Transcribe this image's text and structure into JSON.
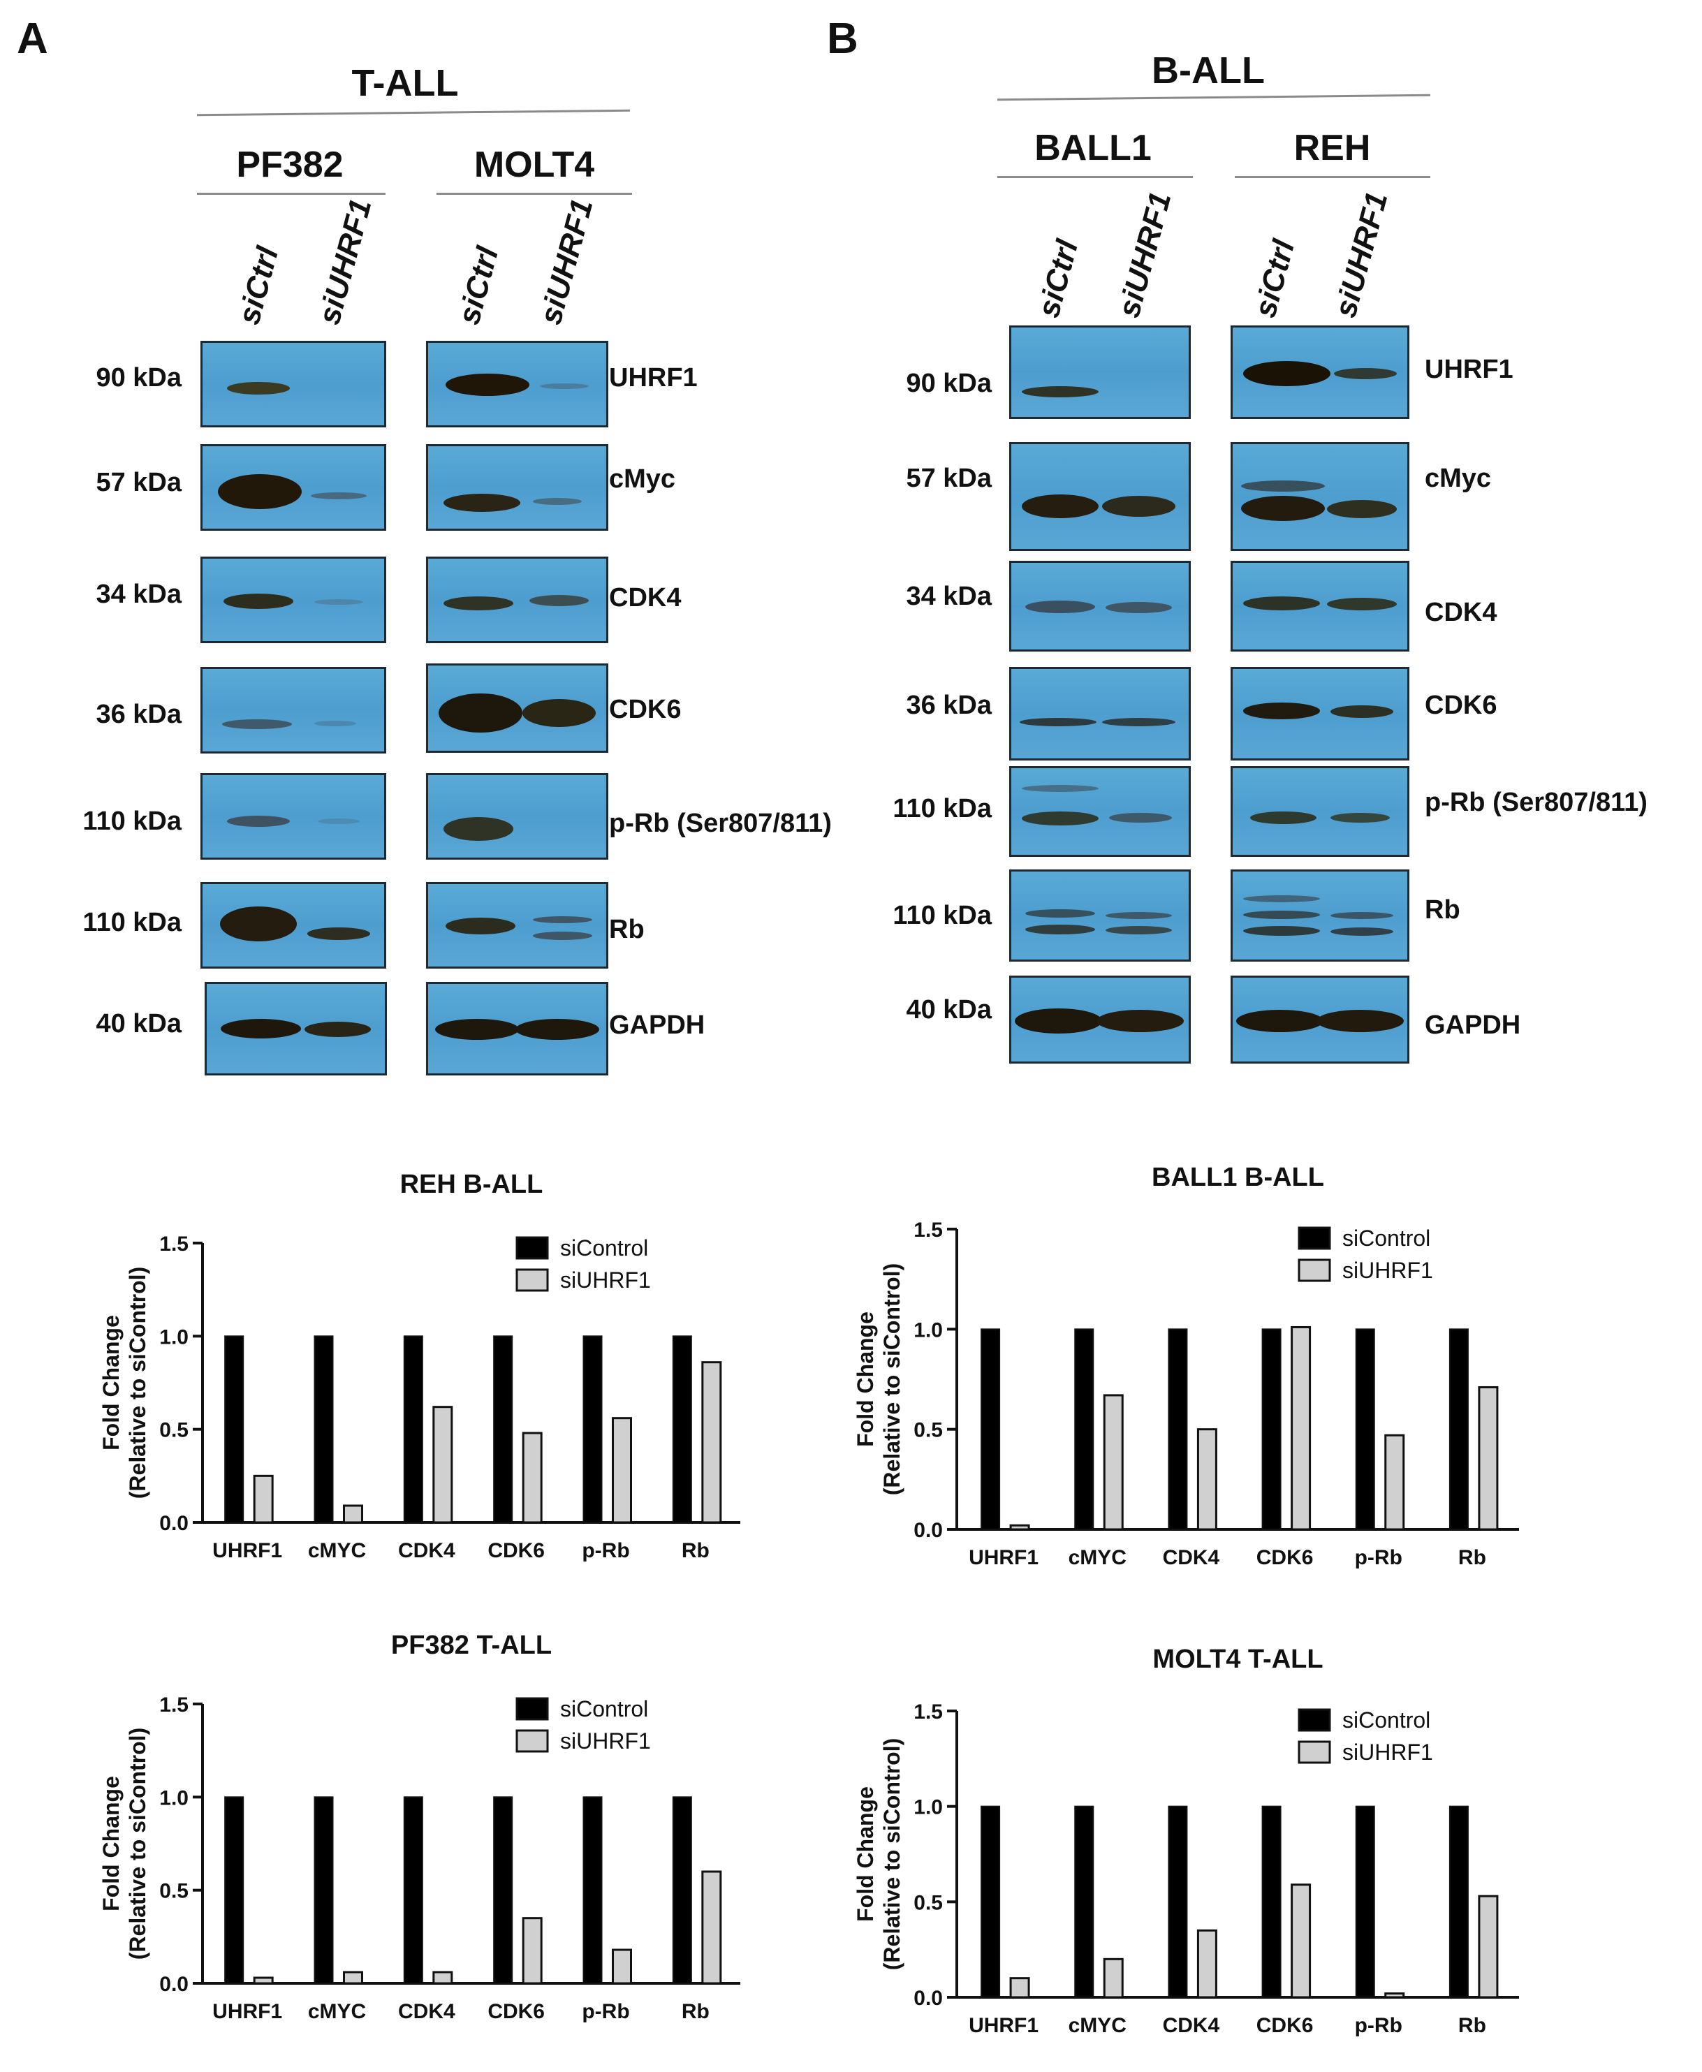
{
  "panelA": {
    "letter": "A",
    "group": "T-ALL",
    "cell_lines": [
      "PF382",
      "MOLT4"
    ],
    "lanes": [
      "siCtrl",
      "siUHRF1"
    ],
    "rows": [
      {
        "mw": "90 kDa",
        "protein": "UHRF1"
      },
      {
        "mw": "57 kDa",
        "protein": "cMyc"
      },
      {
        "mw": "34 kDa",
        "protein": "CDK4"
      },
      {
        "mw": "36 kDa",
        "protein": "CDK6"
      },
      {
        "mw": "110 kDa",
        "protein": "p-Rb (Ser807/811)"
      },
      {
        "mw": "110 kDa",
        "protein": "Rb"
      },
      {
        "mw": "40 kDa",
        "protein": "GAPDH"
      }
    ]
  },
  "panelB": {
    "letter": "B",
    "group": "B-ALL",
    "cell_lines": [
      "BALL1",
      "REH"
    ],
    "lanes": [
      "siCtrl",
      "siUHRF1"
    ],
    "rows": [
      {
        "mw": "90 kDa",
        "protein": "UHRF1"
      },
      {
        "mw": "57 kDa",
        "protein": "cMyc"
      },
      {
        "mw": "34 kDa",
        "protein": "CDK4"
      },
      {
        "mw": "36 kDa",
        "protein": "CDK6"
      },
      {
        "mw": "110 kDa",
        "protein": "p-Rb (Ser807/811)"
      },
      {
        "mw": "110 kDa",
        "protein": "Rb"
      },
      {
        "mw": "40 kDa",
        "protein": "GAPDH"
      }
    ]
  },
  "colors": {
    "siControl": "#000000",
    "siUHRF1": "#d0d0d0",
    "blot": "#4f9fd1",
    "band": "#1b1206"
  },
  "chart_data": [
    {
      "id": "reh",
      "type": "bar",
      "title": "REH B-ALL",
      "categories": [
        "UHRF1",
        "cMYC",
        "CDK4",
        "CDK6",
        "p-Rb",
        "Rb"
      ],
      "series": [
        {
          "name": "siControl",
          "values": [
            1,
            1,
            1,
            1,
            1,
            1
          ]
        },
        {
          "name": "siUHRF1",
          "values": [
            0.25,
            0.09,
            0.62,
            0.48,
            0.56,
            0.86
          ]
        }
      ],
      "ylabel": [
        "Fold Change",
        "(Relative to siControl)"
      ],
      "ylim": [
        0,
        1.5
      ],
      "yticks": [
        "0.0",
        "0.5",
        "1.0",
        "1.5"
      ],
      "legend": "top-right"
    },
    {
      "id": "ball1",
      "type": "bar",
      "title": "BALL1 B-ALL",
      "categories": [
        "UHRF1",
        "cMYC",
        "CDK4",
        "CDK6",
        "p-Rb",
        "Rb"
      ],
      "series": [
        {
          "name": "siControl",
          "values": [
            1,
            1,
            1,
            1,
            1,
            1
          ]
        },
        {
          "name": "siUHRF1",
          "values": [
            0.02,
            0.67,
            0.5,
            1.01,
            0.47,
            0.71
          ]
        }
      ],
      "ylabel": [
        "Fold Change",
        "(Relative to siControl)"
      ],
      "ylim": [
        0,
        1.5
      ],
      "yticks": [
        "0.0",
        "0.5",
        "1.0",
        "1.5"
      ],
      "legend": "top-right"
    },
    {
      "id": "pf382",
      "type": "bar",
      "title": "PF382 T-ALL",
      "categories": [
        "UHRF1",
        "cMYC",
        "CDK4",
        "CDK6",
        "p-Rb",
        "Rb"
      ],
      "series": [
        {
          "name": "siControl",
          "values": [
            1,
            1,
            1,
            1,
            1,
            1
          ]
        },
        {
          "name": "siUHRF1",
          "values": [
            0.03,
            0.06,
            0.06,
            0.35,
            0.18,
            0.6
          ]
        }
      ],
      "ylabel": [
        "Fold Change",
        "(Relative to siControl)"
      ],
      "ylim": [
        0,
        1.5
      ],
      "yticks": [
        "0.0",
        "0.5",
        "1.0",
        "1.5"
      ],
      "legend": "top-right"
    },
    {
      "id": "molt4",
      "type": "bar",
      "title": "MOLT4 T-ALL",
      "categories": [
        "UHRF1",
        "cMYC",
        "CDK4",
        "CDK6",
        "p-Rb",
        "Rb"
      ],
      "series": [
        {
          "name": "siControl",
          "values": [
            1,
            1,
            1,
            1,
            1,
            1
          ]
        },
        {
          "name": "siUHRF1",
          "values": [
            0.1,
            0.2,
            0.35,
            0.59,
            0.02,
            0.53
          ]
        }
      ],
      "ylabel": [
        "Fold Change",
        "(Relative to siControl)"
      ],
      "ylim": [
        0,
        1.5
      ],
      "yticks": [
        "0.0",
        "0.5",
        "1.0",
        "1.5"
      ],
      "legend": "top-right"
    }
  ]
}
